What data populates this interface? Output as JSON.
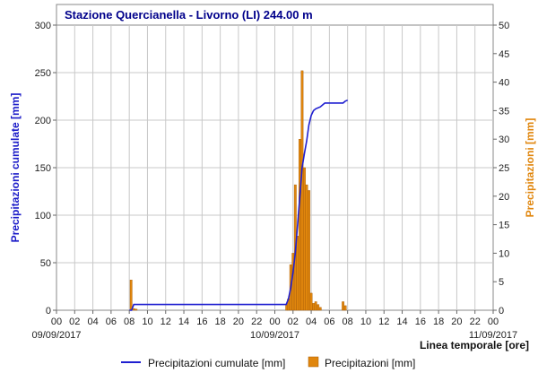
{
  "chart_data": {
    "type": "bar+line",
    "title": "Stazione Quercianella - Livorno (LI) 244.00 m",
    "ylabel_left": "Precipitazioni cumulate [mm]",
    "ylabel_right": "Precipitazioni [mm]",
    "xlabel": "Linea temporale [ore]",
    "x_hours_range": [
      0,
      72
    ],
    "x_tick_labels": [
      "00",
      "02",
      "04",
      "06",
      "08",
      "10",
      "12",
      "14",
      "16",
      "18",
      "20",
      "22",
      "00",
      "02",
      "04",
      "06",
      "08",
      "10",
      "12",
      "14",
      "16",
      "18",
      "20",
      "22",
      "00"
    ],
    "date_labels": [
      "09/09/2017",
      "10/09/2017",
      "11/09/2017"
    ],
    "y_left_range": [
      0,
      300
    ],
    "y_left_ticks": [
      "0",
      "50",
      "100",
      "150",
      "200",
      "250",
      "300"
    ],
    "y_right_range": [
      0,
      50
    ],
    "y_right_ticks": [
      "0",
      "5",
      "10",
      "15",
      "20",
      "25",
      "30",
      "35",
      "40",
      "45",
      "50"
    ],
    "grid": true,
    "legend_position": "bottom",
    "colors": {
      "cumulative": "#1f1fd0",
      "precip": "#e0860d",
      "title": "#00008b"
    },
    "series": [
      {
        "name": "Precipitazioni cumulate [mm]",
        "type": "line",
        "axis": "left",
        "points": [
          [
            8.0,
            0
          ],
          [
            8.25,
            0
          ],
          [
            8.5,
            6
          ],
          [
            12,
            6
          ],
          [
            18,
            6
          ],
          [
            24,
            6
          ],
          [
            25.0,
            6
          ],
          [
            25.25,
            6
          ],
          [
            25.5,
            12
          ],
          [
            25.75,
            24
          ],
          [
            26.0,
            40
          ],
          [
            26.25,
            60
          ],
          [
            26.5,
            90
          ],
          [
            26.75,
            120
          ],
          [
            27.0,
            150
          ],
          [
            27.25,
            165
          ],
          [
            27.5,
            178
          ],
          [
            27.75,
            195
          ],
          [
            28.0,
            205
          ],
          [
            28.25,
            210
          ],
          [
            28.5,
            212
          ],
          [
            29.0,
            214
          ],
          [
            29.25,
            216
          ],
          [
            29.5,
            218
          ],
          [
            30.0,
            218
          ],
          [
            31.0,
            218
          ],
          [
            31.5,
            218
          ],
          [
            31.75,
            220
          ],
          [
            32.0,
            221
          ]
        ]
      },
      {
        "name": "Precipitazioni [mm]",
        "type": "bar",
        "axis": "right",
        "points": [
          [
            8.2,
            5.3
          ],
          [
            8.5,
            0.3
          ],
          [
            8.75,
            0.2
          ],
          [
            25.3,
            1.0
          ],
          [
            25.5,
            2.0
          ],
          [
            25.75,
            8.0
          ],
          [
            26.0,
            10.0
          ],
          [
            26.25,
            22.0
          ],
          [
            26.5,
            13.0
          ],
          [
            26.75,
            30.0
          ],
          [
            27.0,
            42.0
          ],
          [
            27.25,
            25.0
          ],
          [
            27.5,
            22.0
          ],
          [
            27.75,
            21.0
          ],
          [
            28.0,
            3.0
          ],
          [
            28.25,
            1.2
          ],
          [
            28.5,
            1.5
          ],
          [
            28.75,
            1.0
          ],
          [
            29.0,
            0.5
          ],
          [
            31.5,
            1.5
          ],
          [
            31.75,
            0.8
          ]
        ]
      }
    ]
  }
}
